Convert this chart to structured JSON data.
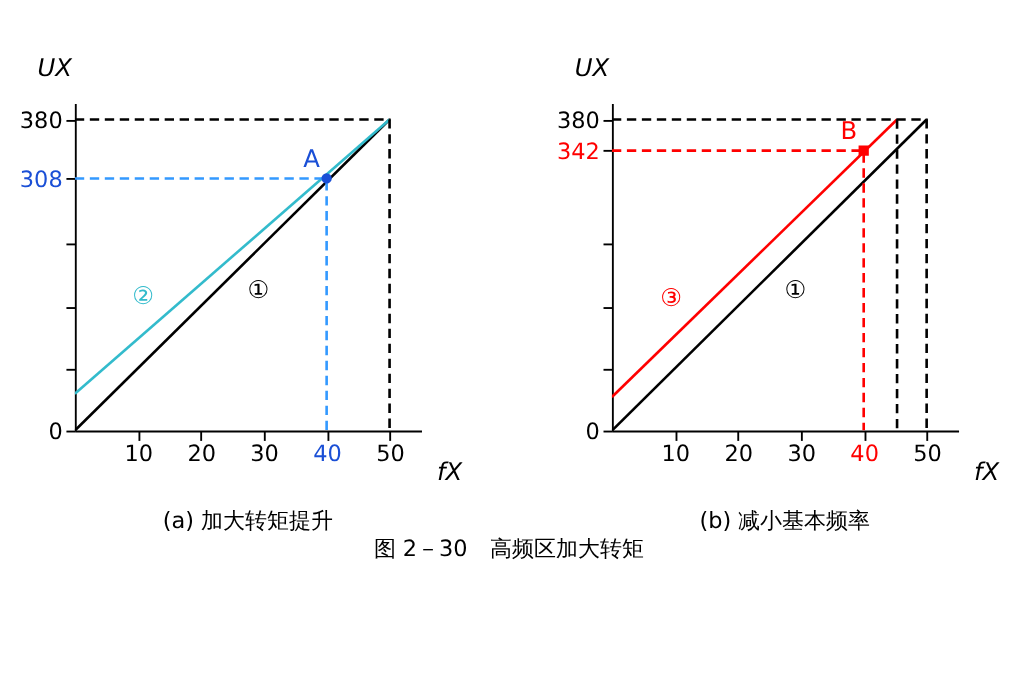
{
  "chart_data": [
    {
      "type": "line",
      "title": "(a) 加大转矩提升",
      "xlabel": "fX",
      "ylabel": "UX",
      "xlim": [
        0,
        55
      ],
      "ylim": [
        0,
        400
      ],
      "xticks": [
        10,
        20,
        30,
        40,
        50
      ],
      "yticks": [
        0,
        {
          "value": 76,
          "label": null
        },
        {
          "value": 152,
          "label": null
        },
        {
          "value": 228,
          "label": null
        },
        308,
        380
      ],
      "annotations": [
        "图 2－30　高频区加大转矩"
      ],
      "series": [
        {
          "name": "①",
          "color": "#000000",
          "line_style": "solid",
          "x": [
            0,
            50
          ],
          "values": [
            0,
            380
          ]
        },
        {
          "name": "②",
          "color": "#33bbcc",
          "line_style": "solid",
          "x": [
            0,
            50
          ],
          "values": [
            45,
            380
          ]
        },
        {
          "type": "line",
          "color": "#3399ff",
          "line_style": "dashed",
          "x": [
            0,
            40,
            40
          ],
          "values": [
            308,
            308,
            0
          ]
        },
        {
          "type": "line",
          "color": "#000000",
          "line_style": "dashed",
          "x": [
            0,
            50,
            50
          ],
          "values": [
            380,
            380,
            0
          ]
        },
        {
          "type": "scatter",
          "name": "A",
          "color": "#1a4fd6",
          "marker": "circle",
          "x": [
            40
          ],
          "values": [
            308
          ]
        }
      ]
    },
    {
      "type": "line",
      "title": "(b) 减小基本频率",
      "xlabel": "fX",
      "ylabel": "UX",
      "xlim": [
        0,
        55
      ],
      "ylim": [
        0,
        400
      ],
      "xticks": [
        10,
        20,
        30,
        40,
        50
      ],
      "yticks": [
        0,
        {
          "value": 76,
          "label": null
        },
        {
          "value": 152,
          "label": null
        },
        {
          "value": 228,
          "label": null
        },
        342,
        380
      ],
      "series": [
        {
          "name": "①",
          "color": "#000000",
          "line_style": "solid",
          "x": [
            0,
            50
          ],
          "values": [
            0,
            380
          ]
        },
        {
          "name": "③",
          "color": "#ff0000",
          "line_style": "solid",
          "x": [
            0,
            45.3
          ],
          "values": [
            41,
            380
          ]
        },
        {
          "type": "line",
          "color": "#ff0000",
          "line_style": "dashed",
          "x": [
            0,
            40,
            40
          ],
          "values": [
            342,
            342,
            0
          ]
        },
        {
          "type": "line",
          "color": "#000000",
          "line_style": "dashed",
          "x": [
            0,
            50,
            50
          ],
          "values": [
            380,
            380,
            0
          ]
        },
        {
          "type": "line",
          "color": "#000000",
          "line_style": "dashed",
          "x": [
            45.3,
            45.3
          ],
          "values": [
            380,
            0
          ]
        },
        {
          "type": "scatter",
          "name": "B",
          "color": "#ff0000",
          "marker": "square",
          "x": [
            40
          ],
          "values": [
            342
          ]
        }
      ]
    }
  ]
}
